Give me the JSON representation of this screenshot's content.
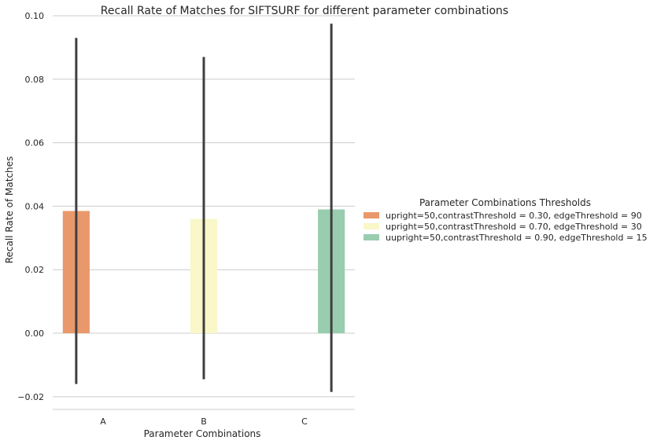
{
  "chart_data": {
    "type": "bar",
    "title": "Recall Rate of Matches for SIFTSURF for different parameter combinations",
    "xlabel": "Parameter Combinations",
    "ylabel": "Recall Rate of Matches",
    "categories": [
      "A",
      "B",
      "C"
    ],
    "ylim": [
      -0.024,
      0.1
    ],
    "yticks": [
      -0.02,
      0.0,
      0.02,
      0.04,
      0.06,
      0.08,
      0.1
    ],
    "ytick_labels": [
      "−0.02",
      "0.00",
      "0.02",
      "0.04",
      "0.06",
      "0.08",
      "0.10"
    ],
    "grid": "horizontal",
    "legend_title": "Parameter Combinations Thresholds",
    "legend_position": "right",
    "series": [
      {
        "name": "upright=50,contrastThreshold = 0.30, edgeThreshold = 90",
        "color": "#e8986a",
        "values": [
          0.0385,
          null,
          null
        ],
        "err_low": [
          -0.016,
          null,
          null
        ],
        "err_high": [
          0.093,
          null,
          null
        ]
      },
      {
        "name": "upright=50,contrastThreshold = 0.70, edgeThreshold = 30",
        "color": "#faf7c8",
        "values": [
          null,
          0.036,
          null
        ],
        "err_low": [
          null,
          -0.0145,
          null
        ],
        "err_high": [
          null,
          0.087,
          null
        ]
      },
      {
        "name": "uupright=50,contrastThreshold = 0.90, edgeThreshold = 15",
        "color": "#99cdb0",
        "values": [
          null,
          null,
          0.039
        ],
        "err_low": [
          null,
          null,
          -0.0185
        ],
        "err_high": [
          null,
          null,
          0.0975
        ]
      }
    ]
  }
}
